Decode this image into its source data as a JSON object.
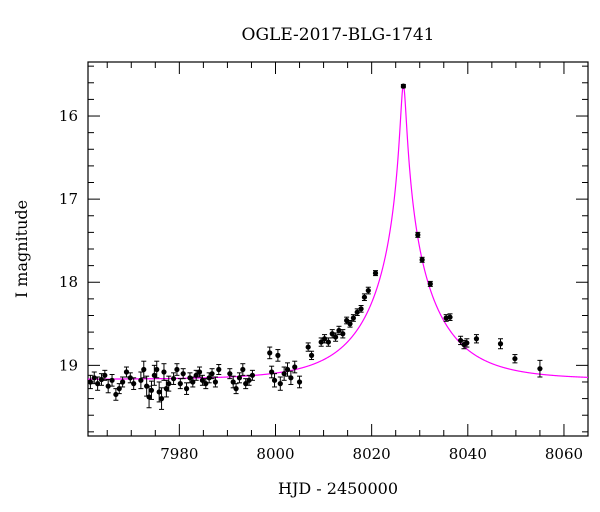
{
  "chart_data": {
    "type": "scatter",
    "title": "OGLE-2017-BLG-1741",
    "xlabel": "HJD - 2450000",
    "ylabel": "I magnitude",
    "xlim": [
      7961,
      8065
    ],
    "ylim": [
      19.85,
      15.35
    ],
    "x_ticks": [
      7980,
      8000,
      8020,
      8040,
      8060
    ],
    "y_ticks": [
      16,
      17,
      18,
      19
    ],
    "x_minor_step": 5,
    "y_minor_step": 0.2,
    "y_inverted": true,
    "colors": {
      "data": "#000000",
      "model": "#ff00ff"
    },
    "model": {
      "name": "",
      "t0": 8026.6,
      "base_mag": 19.17,
      "peak_mag": 15.63,
      "u0": 0.04,
      "tE": 14
    },
    "series": [
      {
        "name": "",
        "points": [
          [
            7961.5,
            19.2,
            0.08
          ],
          [
            7962.3,
            19.15,
            0.07
          ],
          [
            7963.0,
            19.22,
            0.08
          ],
          [
            7963.8,
            19.17,
            0.07
          ],
          [
            7964.5,
            19.12,
            0.06
          ],
          [
            7965.2,
            19.25,
            0.08
          ],
          [
            7966.0,
            19.18,
            0.07
          ],
          [
            7966.8,
            19.35,
            0.07
          ],
          [
            7967.5,
            19.28,
            0.06
          ],
          [
            7968.2,
            19.2,
            0.06
          ],
          [
            7969.0,
            19.08,
            0.06
          ],
          [
            7969.8,
            19.15,
            0.06
          ],
          [
            7970.5,
            19.22,
            0.07
          ],
          [
            7972.0,
            19.18,
            0.1
          ],
          [
            7972.6,
            19.05,
            0.1
          ],
          [
            7973.2,
            19.25,
            0.12
          ],
          [
            7973.7,
            19.38,
            0.13
          ],
          [
            7974.2,
            19.3,
            0.11
          ],
          [
            7974.8,
            19.12,
            0.12
          ],
          [
            7975.3,
            19.05,
            0.1
          ],
          [
            7975.8,
            19.32,
            0.12
          ],
          [
            7976.3,
            19.4,
            0.13
          ],
          [
            7976.8,
            19.08,
            0.1
          ],
          [
            7977.3,
            19.28,
            0.1
          ],
          [
            7977.8,
            19.22,
            0.09
          ],
          [
            7978.8,
            19.16,
            0.07
          ],
          [
            7979.5,
            19.05,
            0.07
          ],
          [
            7980.2,
            19.22,
            0.06
          ],
          [
            7980.8,
            19.1,
            0.06
          ],
          [
            7981.5,
            19.28,
            0.07
          ],
          [
            7982.2,
            19.15,
            0.06
          ],
          [
            7982.8,
            19.2,
            0.06
          ],
          [
            7983.5,
            19.12,
            0.06
          ],
          [
            7984.2,
            19.08,
            0.06
          ],
          [
            7984.8,
            19.18,
            0.06
          ],
          [
            7985.5,
            19.22,
            0.06
          ],
          [
            7986.2,
            19.15,
            0.06
          ],
          [
            7986.8,
            19.1,
            0.06
          ],
          [
            7987.5,
            19.2,
            0.06
          ],
          [
            7988.2,
            19.05,
            0.06
          ],
          [
            7990.5,
            19.1,
            0.06
          ],
          [
            7991.2,
            19.2,
            0.07
          ],
          [
            7991.8,
            19.28,
            0.06
          ],
          [
            7992.5,
            19.15,
            0.06
          ],
          [
            7993.2,
            19.05,
            0.07
          ],
          [
            7993.8,
            19.22,
            0.06
          ],
          [
            7994.5,
            19.18,
            0.06
          ],
          [
            7995.2,
            19.12,
            0.06
          ],
          [
            7998.8,
            18.85,
            0.07
          ],
          [
            7999.2,
            19.08,
            0.07
          ],
          [
            7999.8,
            19.18,
            0.08
          ],
          [
            8000.5,
            18.88,
            0.07
          ],
          [
            8001.0,
            19.22,
            0.08
          ],
          [
            8001.8,
            19.1,
            0.08
          ],
          [
            8002.5,
            19.05,
            0.08
          ],
          [
            8003.2,
            19.15,
            0.08
          ],
          [
            8004.0,
            19.02,
            0.07
          ],
          [
            8005.0,
            19.2,
            0.07
          ],
          [
            8006.8,
            18.78,
            0.05
          ],
          [
            8007.5,
            18.88,
            0.05
          ],
          [
            8009.5,
            18.72,
            0.05
          ],
          [
            8010.2,
            18.68,
            0.05
          ],
          [
            8011.0,
            18.72,
            0.05
          ],
          [
            8011.8,
            18.62,
            0.05
          ],
          [
            8012.5,
            18.66,
            0.05
          ],
          [
            8013.2,
            18.58,
            0.05
          ],
          [
            8014.0,
            18.62,
            0.05
          ],
          [
            8014.8,
            18.46,
            0.04
          ],
          [
            8015.5,
            18.5,
            0.04
          ],
          [
            8016.2,
            18.43,
            0.04
          ],
          [
            8017.0,
            18.36,
            0.04
          ],
          [
            8017.8,
            18.32,
            0.04
          ],
          [
            8018.5,
            18.18,
            0.04
          ],
          [
            8019.3,
            18.1,
            0.04
          ],
          [
            8020.8,
            17.89,
            0.03
          ],
          [
            8026.6,
            15.64,
            0.02
          ],
          [
            8029.6,
            17.43,
            0.03
          ],
          [
            8030.5,
            17.73,
            0.03
          ],
          [
            8032.2,
            18.02,
            0.03
          ],
          [
            8035.5,
            18.43,
            0.04
          ],
          [
            8036.3,
            18.42,
            0.04
          ],
          [
            8038.5,
            18.7,
            0.05
          ],
          [
            8039.2,
            18.75,
            0.05
          ],
          [
            8039.8,
            18.73,
            0.05
          ],
          [
            8041.8,
            18.68,
            0.05
          ],
          [
            8046.8,
            18.74,
            0.06
          ],
          [
            8049.8,
            18.92,
            0.05
          ],
          [
            8055.0,
            19.04,
            0.1
          ]
        ]
      }
    ]
  }
}
